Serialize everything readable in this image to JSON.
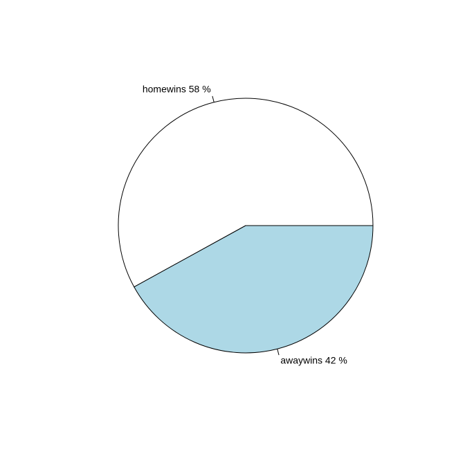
{
  "chart_data": {
    "type": "pie",
    "title": "",
    "slices": [
      {
        "name": "homewins",
        "value": 58,
        "label": "homewins 58 %",
        "color": "#ffffff"
      },
      {
        "name": "awaywins",
        "value": 42,
        "label": "awaywins 42 %",
        "color": "#add8e6"
      }
    ],
    "direction": "counterclockwise",
    "start": "3 o'clock",
    "border_color": "#000000"
  }
}
